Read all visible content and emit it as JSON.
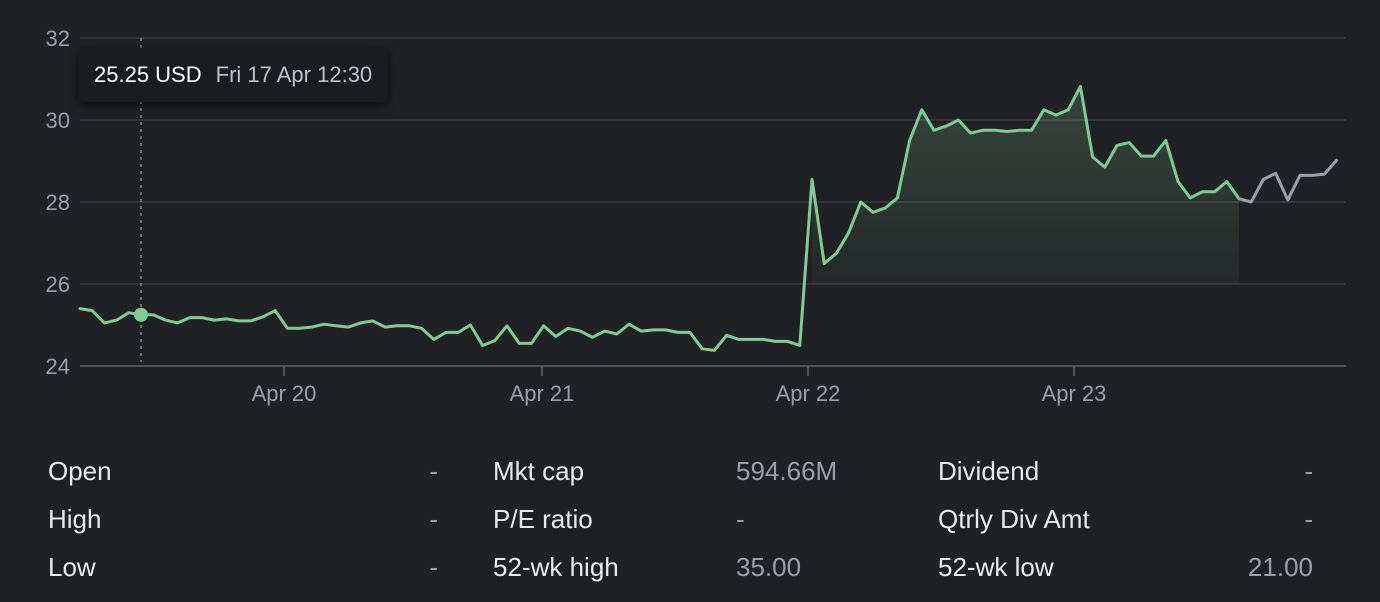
{
  "chart_data": {
    "type": "line",
    "x_tick_labels": [
      "Apr 20",
      "Apr 21",
      "Apr 22",
      "Apr 23"
    ],
    "ylim": [
      24,
      32
    ],
    "y_ticks": [
      24,
      26,
      28,
      30,
      32
    ],
    "grid": true,
    "series": [
      {
        "values": [
          25.4,
          25.35,
          25.05,
          25.12,
          25.3,
          25.25,
          25.25,
          25.12,
          25.05,
          25.18,
          25.18,
          25.12,
          25.15,
          25.1,
          25.1,
          25.2,
          25.35,
          24.92,
          24.92,
          24.95,
          25.02,
          24.98,
          24.95,
          25.05,
          25.1,
          24.95,
          24.98,
          24.98,
          24.92,
          24.65,
          24.82,
          24.82,
          25.0,
          24.5,
          24.62,
          24.98,
          24.55,
          24.55,
          24.98,
          24.72,
          24.92,
          24.85,
          24.7,
          24.85,
          24.78,
          25.02,
          24.85,
          24.88,
          24.88,
          24.82,
          24.82,
          24.42,
          24.38,
          24.75,
          24.65,
          24.65,
          24.65,
          24.6,
          24.6,
          24.5,
          28.55,
          26.5,
          26.75,
          27.25,
          28.0,
          27.75,
          27.85,
          28.1,
          29.5,
          30.25,
          29.75,
          29.85,
          30.0,
          29.68,
          29.75,
          29.75,
          29.72,
          29.75,
          29.75,
          30.25,
          30.12,
          30.25,
          30.82,
          29.1,
          28.85,
          29.38,
          29.45,
          29.12,
          29.12,
          29.5,
          28.5,
          28.1,
          28.25,
          28.25,
          28.5,
          28.08
        ],
        "color": "#81c995"
      },
      {
        "values": [
          28.08,
          28.0,
          28.55,
          28.7,
          28.05,
          28.65,
          28.65,
          28.68,
          29.02
        ],
        "color": "#9aa0a6"
      }
    ],
    "hover_point": {
      "index": 5,
      "value": 25.25
    },
    "tooltip": {
      "price": "25.25 USD",
      "time": "Fri 17 Apr 12:30"
    }
  },
  "stats": {
    "open": {
      "label": "Open",
      "value": "-"
    },
    "high": {
      "label": "High",
      "value": "-"
    },
    "low": {
      "label": "Low",
      "value": "-"
    },
    "mkt_cap": {
      "label": "Mkt cap",
      "value": "594.66M"
    },
    "pe_ratio": {
      "label": "P/E ratio",
      "value": "-"
    },
    "wk52_high": {
      "label": "52-wk high",
      "value": "35.00"
    },
    "dividend": {
      "label": "Dividend",
      "value": "-"
    },
    "qtrly_div": {
      "label": "Qtrly Div Amt",
      "value": "-"
    },
    "wk52_low": {
      "label": "52-wk low",
      "value": "21.00"
    }
  }
}
